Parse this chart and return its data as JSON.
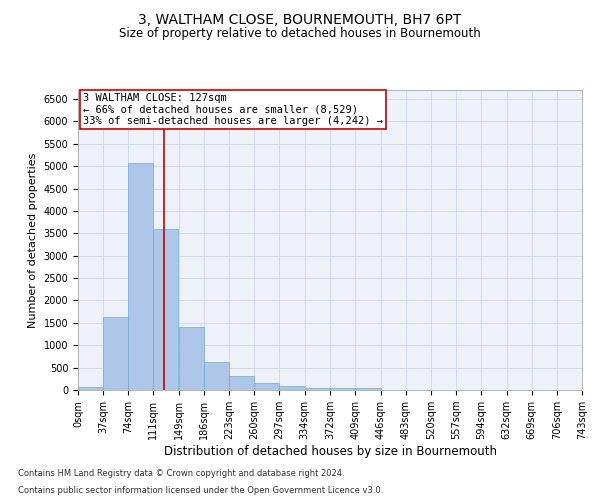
{
  "title": "3, WALTHAM CLOSE, BOURNEMOUTH, BH7 6PT",
  "subtitle": "Size of property relative to detached houses in Bournemouth",
  "xlabel": "Distribution of detached houses by size in Bournemouth",
  "ylabel": "Number of detached properties",
  "footnote1": "Contains HM Land Registry data © Crown copyright and database right 2024.",
  "footnote2": "Contains public sector information licensed under the Open Government Licence v3.0.",
  "annotation_line1": "3 WALTHAM CLOSE: 127sqm",
  "annotation_line2": "← 66% of detached houses are smaller (8,529)",
  "annotation_line3": "33% of semi-detached houses are larger (4,242) →",
  "property_size": 127,
  "bar_color": "#aec6e8",
  "bar_edgecolor": "#6baed6",
  "vline_color": "#cc0000",
  "annotation_box_edgecolor": "#cc0000",
  "annotation_box_facecolor": "white",
  "grid_color": "#d0d8e8",
  "bg_color": "#eef2f8",
  "categories": [
    "0sqm",
    "37sqm",
    "74sqm",
    "111sqm",
    "149sqm",
    "186sqm",
    "223sqm",
    "260sqm",
    "297sqm",
    "334sqm",
    "372sqm",
    "409sqm",
    "446sqm",
    "483sqm",
    "520sqm",
    "557sqm",
    "594sqm",
    "632sqm",
    "669sqm",
    "706sqm",
    "743sqm"
  ],
  "bin_edges": [
    0,
    37,
    74,
    111,
    149,
    186,
    223,
    260,
    297,
    334,
    372,
    409,
    446,
    483,
    520,
    557,
    594,
    632,
    669,
    706,
    743
  ],
  "bar_heights": [
    75,
    1620,
    5080,
    3600,
    1400,
    620,
    310,
    155,
    90,
    55,
    50,
    55,
    5,
    0,
    0,
    0,
    0,
    0,
    0,
    0
  ],
  "ylim": [
    0,
    6700
  ],
  "yticks": [
    0,
    500,
    1000,
    1500,
    2000,
    2500,
    3000,
    3500,
    4000,
    4500,
    5000,
    5500,
    6000,
    6500
  ],
  "title_fontsize": 10,
  "subtitle_fontsize": 8.5,
  "xlabel_fontsize": 8.5,
  "ylabel_fontsize": 8,
  "tick_fontsize": 7,
  "annot_fontsize": 7.5,
  "footnote_fontsize": 6
}
